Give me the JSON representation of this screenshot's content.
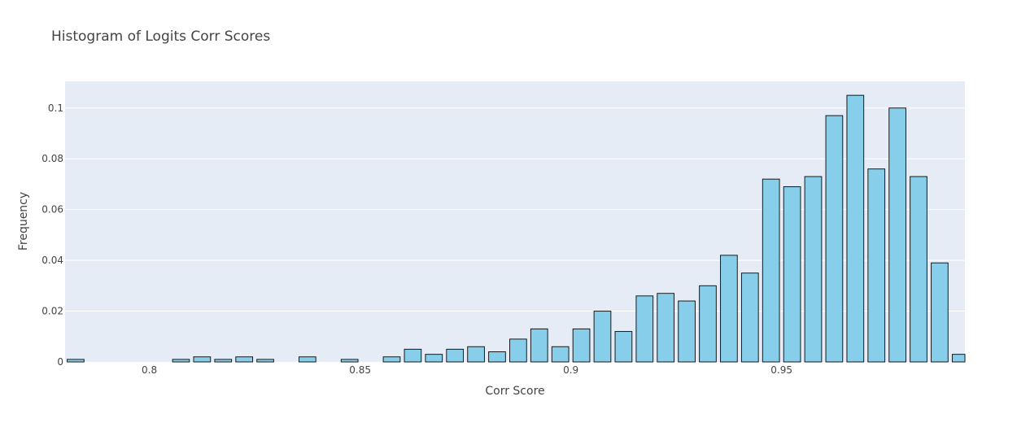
{
  "chart_data": {
    "type": "bar",
    "title": "Histogram of Logits Corr Scores",
    "xlabel": "Corr Score",
    "ylabel": "Frequency",
    "xlim": [
      0.78,
      0.9935
    ],
    "ylim": [
      0,
      0.1105
    ],
    "bin_width": 0.005,
    "x_ticks": [
      0.8,
      0.85,
      0.9,
      0.95
    ],
    "x_tick_labels": [
      "0.8",
      "0.85",
      "0.9",
      "0.95"
    ],
    "y_ticks": [
      0,
      0.02,
      0.04,
      0.06,
      0.08,
      0.1
    ],
    "y_tick_labels": [
      "0",
      "0.02",
      "0.04",
      "0.06",
      "0.08",
      "0.1"
    ],
    "grid": true,
    "legend": "none",
    "colors": {
      "bar_fill": "#87ceeb",
      "bar_outline": "#1a1a1a",
      "plot_background": "#e5ecf6",
      "grid": "#ffffff",
      "text": "#444444"
    },
    "bins": [
      {
        "x": 0.7825,
        "value": 0.001
      },
      {
        "x": 0.8075,
        "value": 0.001
      },
      {
        "x": 0.8125,
        "value": 0.002
      },
      {
        "x": 0.8175,
        "value": 0.001
      },
      {
        "x": 0.8225,
        "value": 0.002
      },
      {
        "x": 0.8275,
        "value": 0.001
      },
      {
        "x": 0.8375,
        "value": 0.002
      },
      {
        "x": 0.8475,
        "value": 0.001
      },
      {
        "x": 0.8575,
        "value": 0.002
      },
      {
        "x": 0.8625,
        "value": 0.005
      },
      {
        "x": 0.8675,
        "value": 0.003
      },
      {
        "x": 0.8725,
        "value": 0.005
      },
      {
        "x": 0.8775,
        "value": 0.006
      },
      {
        "x": 0.8825,
        "value": 0.004
      },
      {
        "x": 0.8875,
        "value": 0.009
      },
      {
        "x": 0.8925,
        "value": 0.013
      },
      {
        "x": 0.8975,
        "value": 0.006
      },
      {
        "x": 0.9025,
        "value": 0.013
      },
      {
        "x": 0.9075,
        "value": 0.02
      },
      {
        "x": 0.9125,
        "value": 0.012
      },
      {
        "x": 0.9175,
        "value": 0.026
      },
      {
        "x": 0.9225,
        "value": 0.027
      },
      {
        "x": 0.9275,
        "value": 0.024
      },
      {
        "x": 0.9325,
        "value": 0.03
      },
      {
        "x": 0.9375,
        "value": 0.042
      },
      {
        "x": 0.9425,
        "value": 0.035
      },
      {
        "x": 0.9475,
        "value": 0.072
      },
      {
        "x": 0.9525,
        "value": 0.069
      },
      {
        "x": 0.9575,
        "value": 0.073
      },
      {
        "x": 0.9625,
        "value": 0.097
      },
      {
        "x": 0.9675,
        "value": 0.105
      },
      {
        "x": 0.9725,
        "value": 0.076
      },
      {
        "x": 0.9775,
        "value": 0.1
      },
      {
        "x": 0.9825,
        "value": 0.073
      },
      {
        "x": 0.9875,
        "value": 0.039
      },
      {
        "x": 0.9925,
        "value": 0.003
      }
    ]
  }
}
